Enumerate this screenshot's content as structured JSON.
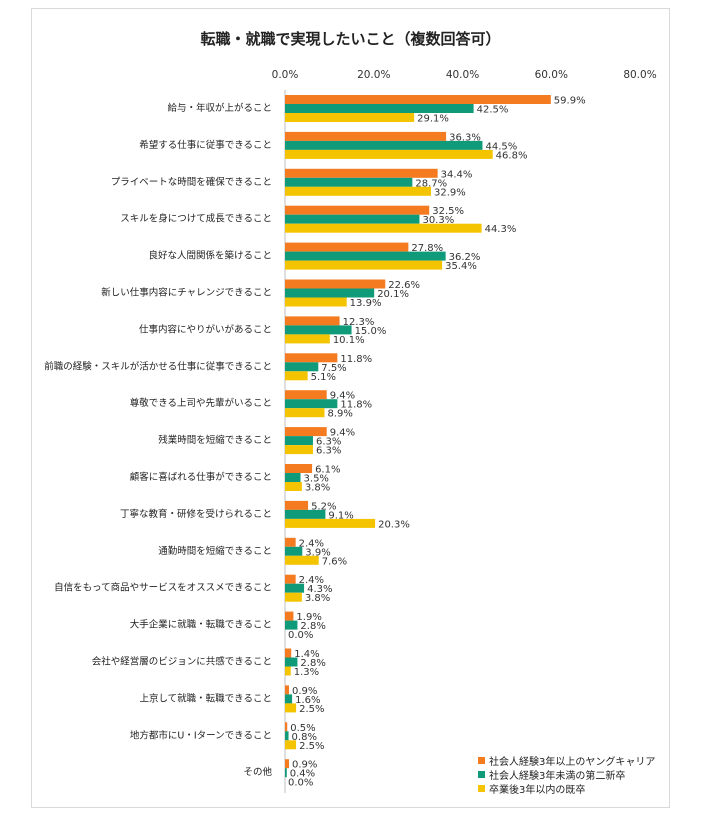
{
  "chart_data": {
    "type": "bar",
    "orientation": "horizontal",
    "title": "転職・就職で実現したいこと（複数回答可）",
    "xlim": [
      0,
      80
    ],
    "xticks": [
      "0.0%",
      "20.0%",
      "40.0%",
      "60.0%",
      "80.0%"
    ],
    "tick_values": [
      0,
      20,
      40,
      60,
      80
    ],
    "grid": false,
    "legend_position": "bottom-right",
    "categories": [
      "給与・年収が上がること",
      "希望する仕事に従事できること",
      "プライベートな時間を確保できること",
      "スキルを身につけて成長できること",
      "良好な人間関係を築けること",
      "新しい仕事内容にチャレンジできること",
      "仕事内容にやりがいがあること",
      "前職の経験・スキルが活かせる仕事に従事できること",
      "尊敬できる上司や先輩がいること",
      "残業時間を短縮できること",
      "顧客に喜ばれる仕事ができること",
      "丁寧な教育・研修を受けられること",
      "通勤時間を短縮できること",
      "自信をもって商品やサービスをオススメできること",
      "大手企業に就職・転職できること",
      "会社や経営層のビジョンに共感できること",
      "上京して就職・転職できること",
      "地方都市にU・Iターンできること",
      "その他"
    ],
    "series": [
      {
        "name": "社会人経験3年以上のヤングキャリア",
        "color": "#f47b20",
        "values": [
          59.9,
          36.3,
          34.4,
          32.5,
          27.8,
          22.6,
          12.3,
          11.8,
          9.4,
          9.4,
          6.1,
          5.2,
          2.4,
          2.4,
          1.9,
          1.4,
          0.9,
          0.5,
          0.9
        ],
        "labels": [
          "59.9%",
          "36.3%",
          "34.4%",
          "32.5%",
          "27.8%",
          "22.6%",
          "12.3%",
          "11.8%",
          "9.4%",
          "9.4%",
          "6.1%",
          "5.2%",
          "2.4%",
          "2.4%",
          "1.9%",
          "1.4%",
          "0.9%",
          "0.5%",
          "0.9%"
        ]
      },
      {
        "name": "社会人経験3年未満の第二新卒",
        "color": "#0f9b7a",
        "values": [
          42.5,
          44.5,
          28.7,
          30.3,
          36.2,
          20.1,
          15.0,
          7.5,
          11.8,
          6.3,
          3.5,
          9.1,
          3.9,
          4.3,
          2.8,
          2.8,
          1.6,
          0.8,
          0.4
        ],
        "labels": [
          "42.5%",
          "44.5%",
          "28.7%",
          "30.3%",
          "36.2%",
          "20.1%",
          "15.0%",
          "7.5%",
          "11.8%",
          "6.3%",
          "3.5%",
          "9.1%",
          "3.9%",
          "4.3%",
          "2.8%",
          "2.8%",
          "1.6%",
          "0.8%",
          "0.4%"
        ]
      },
      {
        "name": "卒業後3年以内の既卒",
        "color": "#f5c400",
        "values": [
          29.1,
          46.8,
          32.9,
          44.3,
          35.4,
          13.9,
          10.1,
          5.1,
          8.9,
          6.3,
          3.8,
          20.3,
          7.6,
          3.8,
          0.0,
          1.3,
          2.5,
          2.5,
          0.0
        ],
        "labels": [
          "29.1%",
          "46.8%",
          "32.9%",
          "44.3%",
          "35.4%",
          "13.9%",
          "10.1%",
          "5.1%",
          "8.9%",
          "6.3%",
          "3.8%",
          "20.3%",
          "7.6%",
          "3.8%",
          "0.0%",
          "1.3%",
          "2.5%",
          "2.5%",
          "0.0%"
        ]
      }
    ]
  }
}
